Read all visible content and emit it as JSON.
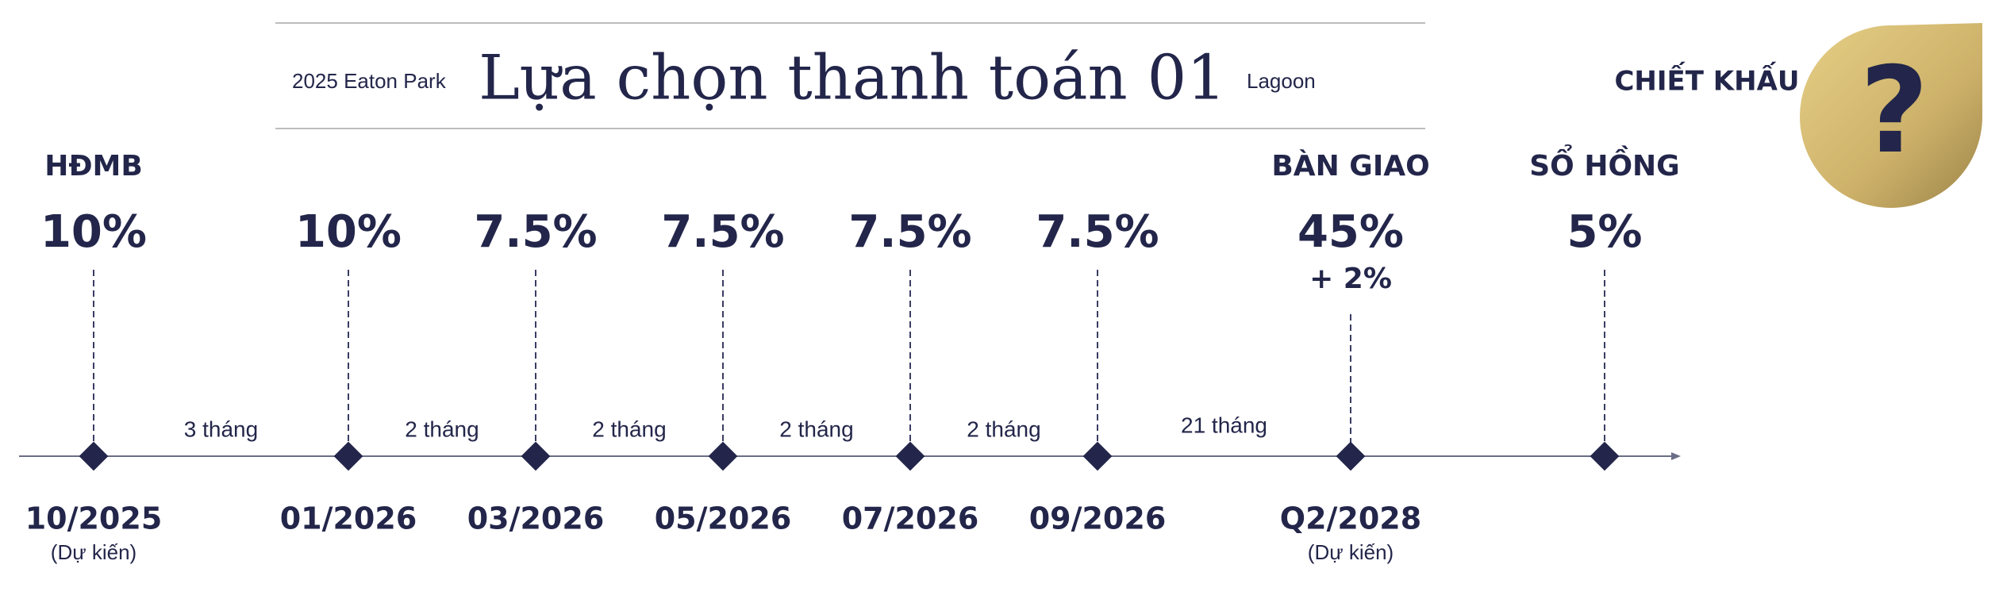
{
  "header": {
    "left": "2025 Eaton Park",
    "title": "Lựa chọn thanh toán 01",
    "right": "Lagoon"
  },
  "discount": {
    "label": "CHIẾT KHẤU",
    "icon": "?"
  },
  "milestones": [
    {
      "heading": "HĐMB",
      "percent": "10%",
      "date": "10/2025",
      "note": "(Dự kiến)"
    },
    {
      "percent": "10%",
      "date": "01/2026"
    },
    {
      "percent": "7.5%",
      "date": "03/2026"
    },
    {
      "percent": "7.5%",
      "date": "05/2026"
    },
    {
      "percent": "7.5%",
      "date": "07/2026"
    },
    {
      "percent": "7.5%",
      "date": "09/2026"
    },
    {
      "heading": "BÀN GIAO",
      "percent": "45%",
      "extra": "+ 2%",
      "date": "Q2/2028",
      "note": "(Dự kiến)"
    },
    {
      "heading": "SỔ HỒNG",
      "percent": "5%"
    }
  ],
  "intervals": [
    "3 tháng",
    "2 tháng",
    "2 tháng",
    "2 tháng",
    "2 tháng",
    "21 tháng"
  ]
}
